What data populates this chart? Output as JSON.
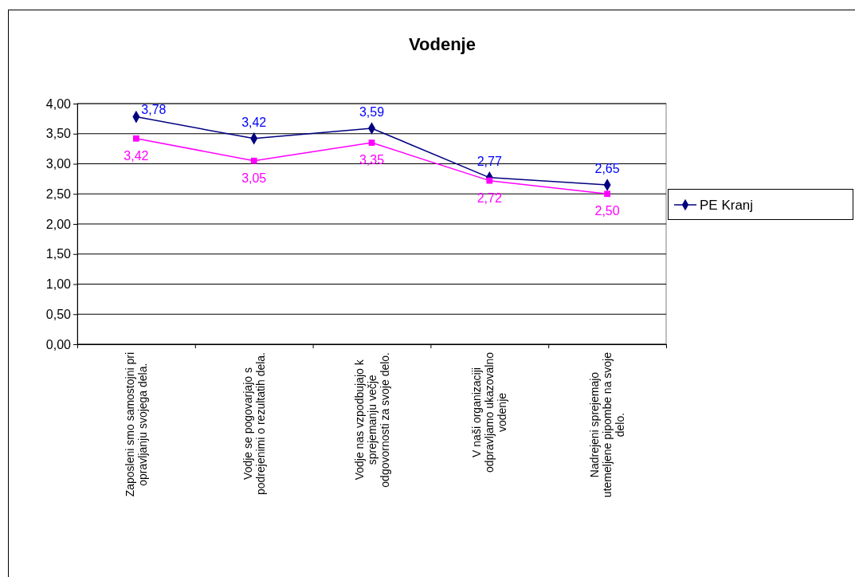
{
  "chart_data": {
    "type": "line",
    "title": "Vodenje",
    "categories": [
      "Zaposleni smo samostojni pri opravljanju svojega dela.",
      "Vodje se pogovarjajo s podrejenimi o rezultatih dela.",
      "Vodje nas vzpodbujajo k sprejemanju večje odgovornosti za svoje delo.",
      "V naši organizaciji odpravljamo ukazovalno vodenje",
      "Nadrejeni sprejemajo utemeljene pipombe na svoje delo."
    ],
    "series": [
      {
        "name": "PE Kranj",
        "color": "#000080",
        "marker": "diamond",
        "values": [
          3.78,
          3.42,
          3.59,
          2.77,
          2.65
        ],
        "value_labels": [
          "3,78",
          "3,42",
          "3,59",
          "2,77",
          "2,65"
        ]
      },
      {
        "color": "#ff00ff",
        "marker": "square",
        "values": [
          3.42,
          3.05,
          3.35,
          2.72,
          2.5
        ],
        "value_labels": [
          "3,42",
          "3,05",
          "3,35",
          "2,72",
          "2,50"
        ]
      }
    ],
    "ylim": [
      0,
      4
    ],
    "yticks": [
      {
        "value": 0,
        "label": "0,00"
      },
      {
        "value": 0.5,
        "label": "0,50"
      },
      {
        "value": 1,
        "label": "1,00"
      },
      {
        "value": 1.5,
        "label": "1,50"
      },
      {
        "value": 2,
        "label": "2,00"
      },
      {
        "value": 2.5,
        "label": "2,50"
      },
      {
        "value": 3,
        "label": "3,00"
      },
      {
        "value": 3.5,
        "label": "3,50"
      },
      {
        "value": 4,
        "label": "4,00"
      }
    ],
    "grid": "y",
    "legend": "right"
  }
}
